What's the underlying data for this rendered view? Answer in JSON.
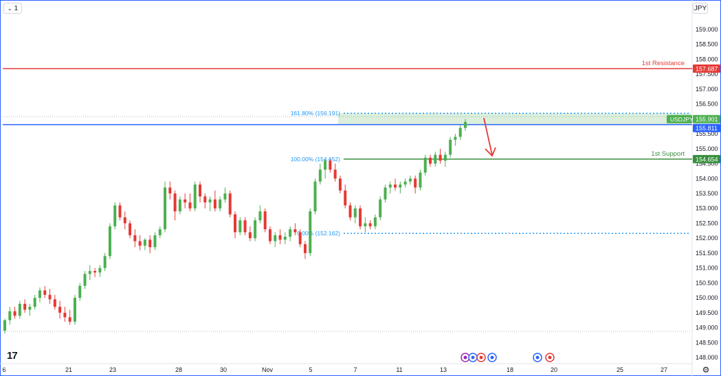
{
  "toolbar": {
    "interval_label": "1",
    "currency_label": "JPY"
  },
  "brand": {
    "logo_text": "17"
  },
  "colors": {
    "up": "#4caf50",
    "down": "#e53935",
    "resistance": "#e53935",
    "support": "#388e3c",
    "price_line": "#2962ff",
    "fib": "#2196f3",
    "axis_text": "#131722",
    "arrow": "#e53935"
  },
  "icons": [
    "chevron-down-icon",
    "gear-icon",
    "event-flag-icon"
  ],
  "chart_data": {
    "type": "candlestick",
    "symbol": "USDJPY",
    "price_axis": {
      "min": 148.0,
      "max": 159.0,
      "ticks": [
        "159.000",
        "158.500",
        "158.000",
        "157.500",
        "157.000",
        "156.500",
        "156.000",
        "155.500",
        "155.000",
        "154.500",
        "154.000",
        "153.500",
        "153.000",
        "152.500",
        "152.000",
        "151.500",
        "151.000",
        "150.500",
        "150.000",
        "149.500",
        "149.000",
        "148.500",
        "148.000"
      ]
    },
    "time_axis": {
      "labels": [
        "6",
        "21",
        "23",
        "28",
        "30",
        "Nov",
        "5",
        "7",
        "11",
        "13",
        "18",
        "20",
        "25",
        "27"
      ]
    },
    "levels": [
      {
        "label": "1st Resistance",
        "value": 157.687,
        "value_text": "157.687",
        "kind": "resistance"
      },
      {
        "label": "1st Support",
        "value": 154.654,
        "value_text": "154.654",
        "kind": "support"
      }
    ],
    "last_price": {
      "symbol": "USDJPY",
      "value": 155.901,
      "value_text": "155.901"
    },
    "price_line": {
      "value": 155.811,
      "value_text": "155.811"
    },
    "fibonacci": [
      {
        "label": "161.80% (156.191)",
        "value": 156.191
      },
      {
        "label": "100.00% (154.652)",
        "value": 154.652
      },
      {
        "label": "0.00% (152.162)",
        "value": 152.162
      }
    ],
    "annotation": "bearish arrow from ~155.8 toward 154.7",
    "candles": [
      [
        148.9,
        149.3,
        148.8,
        149.25
      ],
      [
        149.25,
        149.7,
        149.1,
        149.55
      ],
      [
        149.55,
        149.7,
        149.3,
        149.4
      ],
      [
        149.4,
        149.9,
        149.3,
        149.8
      ],
      [
        149.8,
        149.95,
        149.5,
        149.6
      ],
      [
        149.6,
        149.8,
        149.4,
        149.7
      ],
      [
        149.7,
        150.1,
        149.6,
        150.0
      ],
      [
        150.0,
        150.35,
        149.85,
        150.25
      ],
      [
        150.25,
        150.4,
        150.0,
        150.1
      ],
      [
        150.1,
        150.3,
        149.8,
        149.95
      ],
      [
        149.95,
        150.1,
        149.6,
        149.7
      ],
      [
        149.7,
        149.9,
        149.3,
        149.5
      ],
      [
        149.5,
        149.7,
        149.2,
        149.35
      ],
      [
        149.35,
        149.6,
        149.1,
        149.2
      ],
      [
        149.2,
        150.1,
        149.1,
        150.0
      ],
      [
        150.0,
        150.5,
        149.9,
        150.4
      ],
      [
        150.4,
        150.9,
        150.3,
        150.8
      ],
      [
        150.8,
        151.1,
        150.6,
        150.9
      ],
      [
        150.9,
        151.0,
        150.7,
        150.85
      ],
      [
        150.85,
        151.1,
        150.7,
        151.0
      ],
      [
        151.0,
        151.5,
        150.9,
        151.4
      ],
      [
        151.4,
        152.5,
        151.3,
        152.4
      ],
      [
        152.4,
        153.2,
        152.3,
        153.1
      ],
      [
        153.1,
        153.2,
        152.6,
        152.7
      ],
      [
        152.7,
        152.9,
        152.3,
        152.5
      ],
      [
        152.5,
        152.6,
        152.0,
        152.1
      ],
      [
        152.1,
        152.3,
        151.7,
        151.9
      ],
      [
        151.9,
        152.1,
        151.6,
        151.75
      ],
      [
        151.75,
        152.0,
        151.6,
        151.95
      ],
      [
        151.95,
        152.1,
        151.5,
        151.7
      ],
      [
        151.7,
        152.2,
        151.6,
        152.1
      ],
      [
        152.1,
        152.4,
        152.0,
        152.3
      ],
      [
        152.3,
        153.9,
        152.2,
        153.7
      ],
      [
        153.7,
        153.9,
        153.3,
        153.5
      ],
      [
        153.5,
        153.6,
        152.6,
        152.9
      ],
      [
        152.9,
        153.4,
        152.8,
        153.3
      ],
      [
        153.3,
        153.5,
        153.0,
        153.2
      ],
      [
        153.2,
        153.5,
        152.9,
        153.0
      ],
      [
        153.0,
        153.9,
        152.9,
        153.8
      ],
      [
        153.8,
        153.9,
        153.2,
        153.4
      ],
      [
        153.4,
        153.5,
        153.0,
        153.2
      ],
      [
        153.2,
        153.4,
        152.9,
        153.3
      ],
      [
        153.3,
        153.6,
        152.9,
        153.0
      ],
      [
        153.0,
        153.4,
        152.9,
        153.3
      ],
      [
        153.3,
        153.7,
        153.2,
        153.5
      ],
      [
        153.5,
        153.6,
        152.7,
        152.8
      ],
      [
        152.8,
        152.9,
        152.0,
        152.2
      ],
      [
        152.2,
        152.7,
        152.1,
        152.6
      ],
      [
        152.6,
        152.7,
        152.1,
        152.2
      ],
      [
        152.2,
        152.4,
        151.9,
        152.0
      ],
      [
        152.0,
        152.7,
        151.9,
        152.6
      ],
      [
        152.6,
        153.1,
        152.5,
        152.9
      ],
      [
        152.9,
        153.0,
        152.2,
        152.3
      ],
      [
        152.3,
        152.4,
        151.8,
        151.9
      ],
      [
        151.9,
        152.2,
        151.7,
        152.1
      ],
      [
        152.1,
        152.3,
        151.8,
        151.95
      ],
      [
        151.95,
        152.2,
        151.8,
        152.05
      ],
      [
        152.05,
        152.4,
        151.9,
        152.3
      ],
      [
        152.3,
        152.5,
        152.1,
        152.2
      ],
      [
        152.2,
        152.3,
        151.7,
        151.8
      ],
      [
        151.8,
        151.9,
        151.3,
        151.5
      ],
      [
        151.5,
        153.0,
        151.4,
        152.9
      ],
      [
        152.9,
        154.0,
        152.8,
        153.9
      ],
      [
        153.9,
        154.5,
        153.8,
        154.3
      ],
      [
        154.3,
        154.65,
        154.0,
        154.6
      ],
      [
        154.6,
        154.65,
        154.2,
        154.3
      ],
      [
        154.3,
        154.5,
        153.9,
        154.0
      ],
      [
        154.0,
        154.1,
        153.5,
        153.6
      ],
      [
        153.6,
        153.8,
        153.0,
        153.1
      ],
      [
        153.1,
        153.2,
        152.6,
        152.7
      ],
      [
        152.7,
        153.1,
        152.5,
        153.0
      ],
      [
        153.0,
        153.1,
        152.3,
        152.4
      ],
      [
        152.4,
        152.7,
        152.2,
        152.5
      ],
      [
        152.5,
        152.6,
        152.3,
        152.4
      ],
      [
        152.4,
        152.8,
        152.3,
        152.7
      ],
      [
        152.7,
        153.4,
        152.6,
        153.3
      ],
      [
        153.3,
        153.8,
        153.2,
        153.7
      ],
      [
        153.7,
        153.9,
        153.5,
        153.8
      ],
      [
        153.8,
        154.0,
        153.6,
        153.7
      ],
      [
        153.7,
        153.9,
        153.5,
        153.8
      ],
      [
        153.8,
        154.0,
        153.7,
        153.9
      ],
      [
        153.9,
        154.1,
        153.8,
        154.0
      ],
      [
        154.0,
        154.1,
        153.5,
        153.7
      ],
      [
        153.7,
        154.3,
        153.6,
        154.2
      ],
      [
        154.2,
        154.8,
        154.1,
        154.7
      ],
      [
        154.7,
        154.8,
        154.4,
        154.5
      ],
      [
        154.5,
        154.9,
        154.4,
        154.8
      ],
      [
        154.8,
        155.0,
        154.5,
        154.6
      ],
      [
        154.6,
        154.9,
        154.4,
        154.8
      ],
      [
        154.8,
        155.4,
        154.7,
        155.3
      ],
      [
        155.3,
        155.5,
        155.1,
        155.4
      ],
      [
        155.4,
        155.8,
        155.3,
        155.7
      ],
      [
        155.7,
        156.0,
        155.6,
        155.9
      ]
    ],
    "event_markers": [
      {
        "label": "flag",
        "color": "#9c27b0",
        "date_index": 0
      },
      {
        "label": "flag",
        "color": "#2962ff",
        "date_index": 1
      },
      {
        "label": "flag",
        "color": "#e53935",
        "date_index": 2
      },
      {
        "label": "flag",
        "color": "#2962ff",
        "date_index": 3
      },
      {
        "label": "flag",
        "color": "#2962ff",
        "date_index": 4
      },
      {
        "label": "flag",
        "color": "#e53935",
        "date_index": 5
      }
    ]
  }
}
